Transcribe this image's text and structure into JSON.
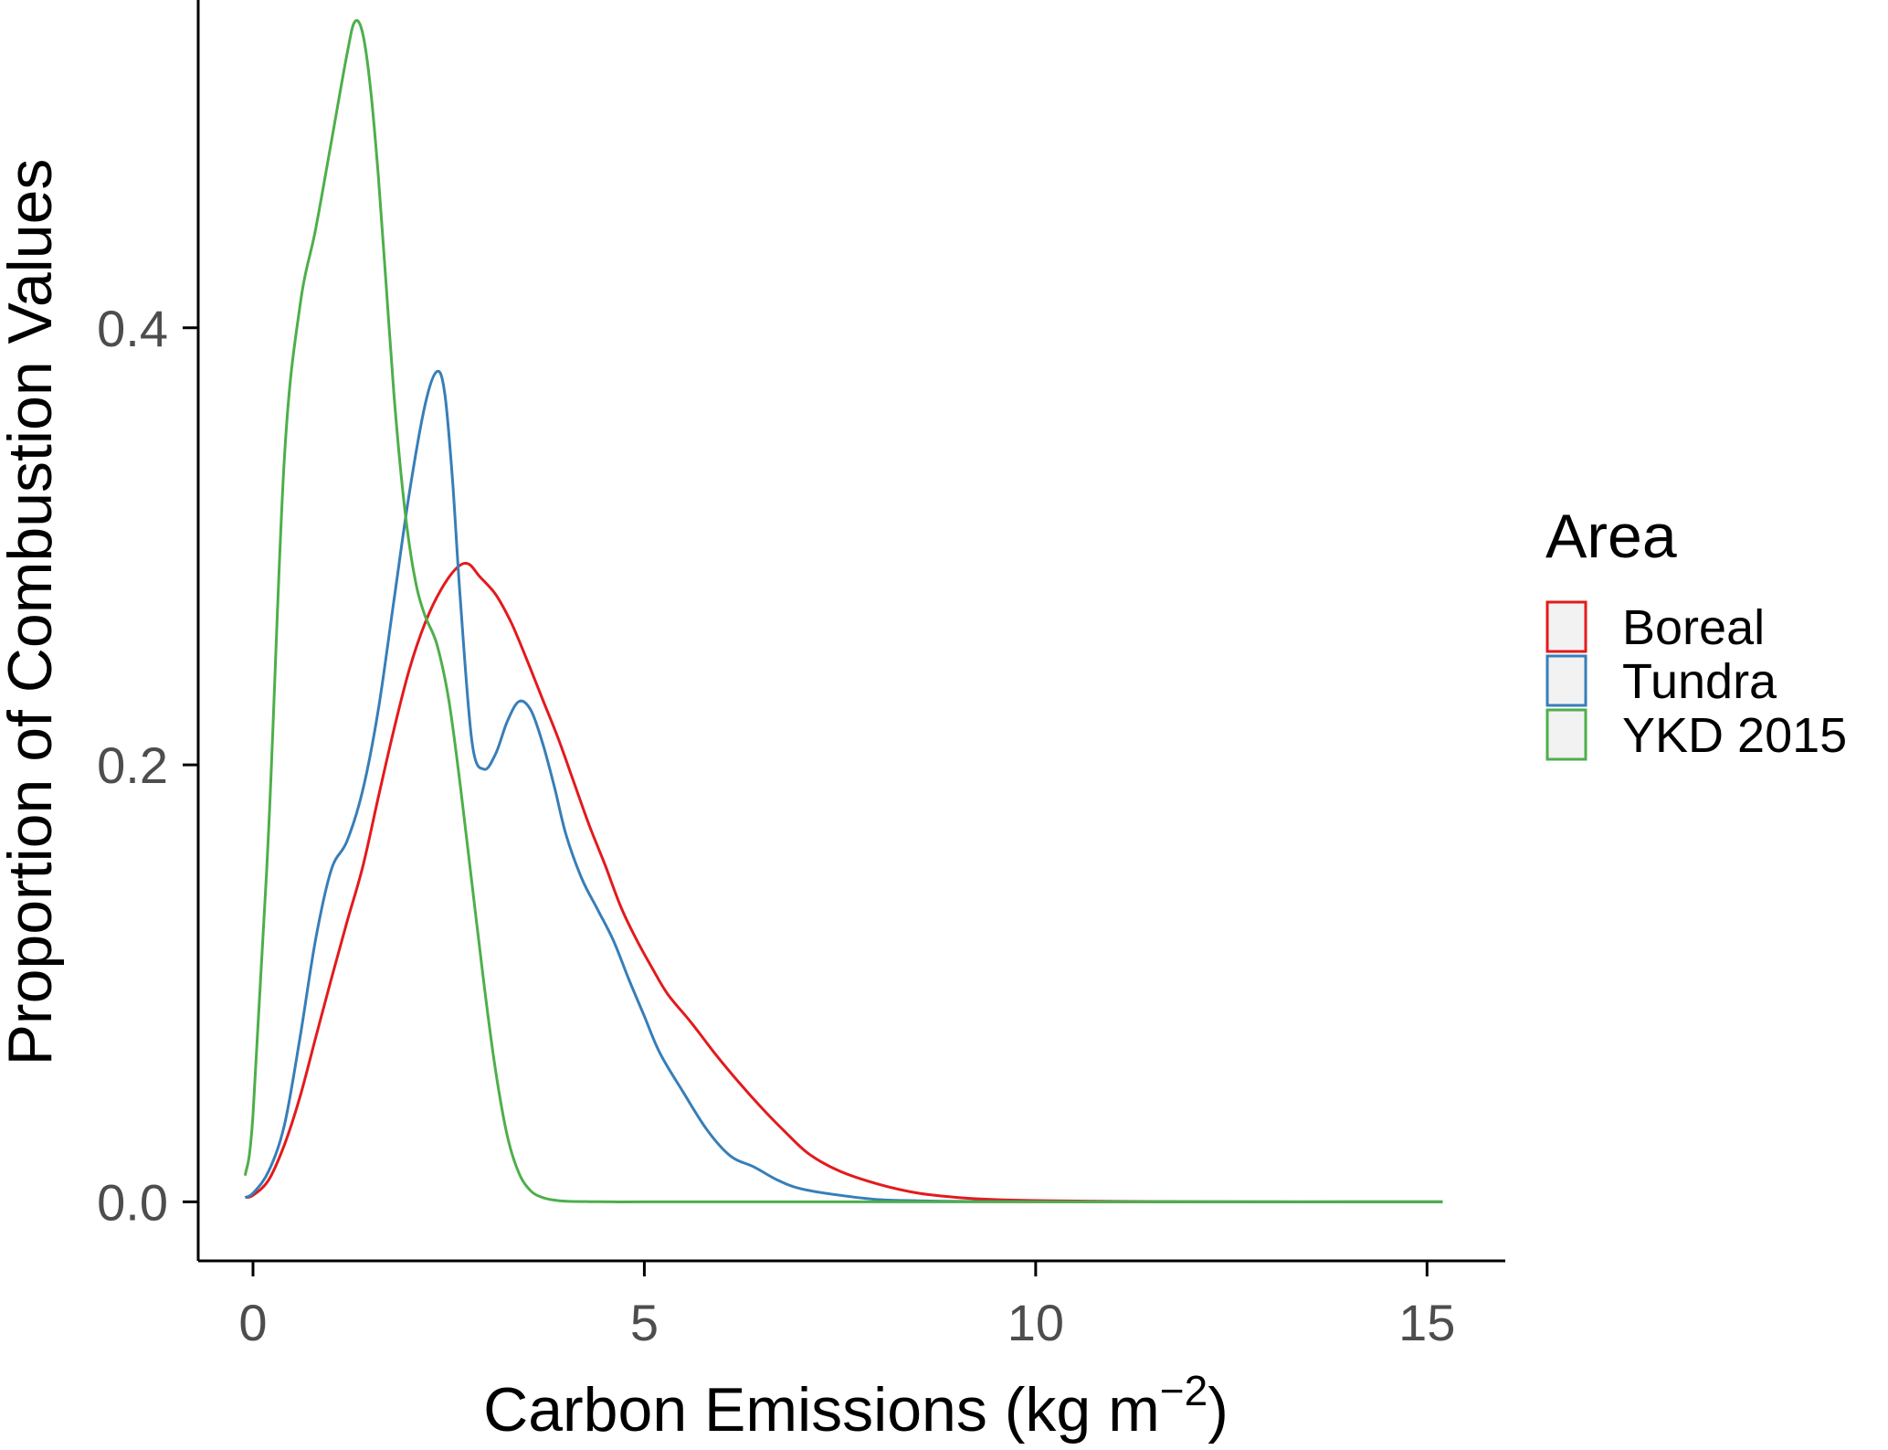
{
  "chart_data": {
    "type": "line",
    "xlabel": "Carbon Emissions (kg m",
    "xlabel_superscript": "−2",
    "xlabel_suffix": ")",
    "ylabel": "Proportion of Combustion Values",
    "xlim": [
      -0.7,
      16.0
    ],
    "ylim": [
      -0.027,
      0.55
    ],
    "x_ticks": [
      0,
      5,
      10,
      15
    ],
    "y_ticks": [
      0.0,
      0.2,
      0.4
    ],
    "x_tick_labels": [
      "0",
      "5",
      "10",
      "15"
    ],
    "y_tick_labels": [
      "0.0",
      "0.2",
      "0.4"
    ],
    "grid": false,
    "legend": {
      "title": "Area",
      "placement": "right",
      "entries": [
        "Boreal",
        "Tundra",
        "YKD 2015"
      ]
    },
    "colors": {
      "Boreal": "#e31a1c",
      "Tundra": "#377eb8",
      "YKD 2015": "#4daf4a"
    },
    "series": [
      {
        "name": "Boreal",
        "x": [
          -0.1,
          0.0,
          0.2,
          0.4,
          0.6,
          0.8,
          1.0,
          1.2,
          1.4,
          1.6,
          1.8,
          2.0,
          2.2,
          2.4,
          2.6,
          2.75,
          2.9,
          3.1,
          3.3,
          3.5,
          3.7,
          3.9,
          4.1,
          4.3,
          4.5,
          4.7,
          4.9,
          5.1,
          5.3,
          5.6,
          5.9,
          6.2,
          6.5,
          6.8,
          7.1,
          7.5,
          8.0,
          8.5,
          9.0,
          9.5,
          10.0,
          11.0,
          12.0,
          13.0,
          14.0,
          15.2
        ],
        "y": [
          0.002,
          0.003,
          0.01,
          0.026,
          0.048,
          0.075,
          0.102,
          0.128,
          0.153,
          0.185,
          0.216,
          0.244,
          0.265,
          0.28,
          0.29,
          0.292,
          0.286,
          0.278,
          0.265,
          0.248,
          0.23,
          0.212,
          0.192,
          0.172,
          0.154,
          0.135,
          0.12,
          0.107,
          0.095,
          0.082,
          0.068,
          0.055,
          0.043,
          0.032,
          0.022,
          0.014,
          0.008,
          0.004,
          0.002,
          0.001,
          0.0006,
          0.0002,
          0.0001,
          0.0,
          0.0,
          0.0
        ]
      },
      {
        "name": "Tundra",
        "x": [
          -0.1,
          0.0,
          0.2,
          0.4,
          0.6,
          0.8,
          1.0,
          1.2,
          1.4,
          1.6,
          1.8,
          2.0,
          2.2,
          2.35,
          2.45,
          2.55,
          2.65,
          2.8,
          2.95,
          3.1,
          3.25,
          3.4,
          3.55,
          3.7,
          3.85,
          4.0,
          4.2,
          4.4,
          4.6,
          4.8,
          5.0,
          5.2,
          5.5,
          5.8,
          6.1,
          6.4,
          6.7,
          7.0,
          7.5,
          8.0,
          8.5,
          9.0,
          10.0,
          11.0,
          13.0,
          15.2
        ],
        "y": [
          0.002,
          0.004,
          0.014,
          0.035,
          0.075,
          0.12,
          0.152,
          0.165,
          0.188,
          0.225,
          0.275,
          0.325,
          0.365,
          0.38,
          0.37,
          0.33,
          0.275,
          0.21,
          0.198,
          0.205,
          0.22,
          0.229,
          0.225,
          0.21,
          0.19,
          0.168,
          0.148,
          0.134,
          0.12,
          0.102,
          0.085,
          0.068,
          0.05,
          0.033,
          0.021,
          0.016,
          0.01,
          0.006,
          0.003,
          0.001,
          0.0005,
          0.0002,
          0.0001,
          0.0,
          0.0,
          0.0
        ]
      },
      {
        "name": "YKD 2015",
        "x": [
          -0.1,
          0.0,
          0.2,
          0.4,
          0.6,
          0.8,
          1.0,
          1.2,
          1.3,
          1.4,
          1.5,
          1.6,
          1.7,
          1.8,
          1.9,
          2.0,
          2.1,
          2.2,
          2.35,
          2.5,
          2.65,
          2.8,
          2.95,
          3.1,
          3.25,
          3.4,
          3.55,
          3.7,
          3.85,
          4.0,
          4.3,
          4.6,
          5.0,
          6.0,
          8.0,
          10.0,
          12.0,
          15.2
        ],
        "y": [
          0.012,
          0.04,
          0.17,
          0.34,
          0.41,
          0.445,
          0.485,
          0.525,
          0.54,
          0.535,
          0.51,
          0.47,
          0.42,
          0.37,
          0.33,
          0.3,
          0.28,
          0.268,
          0.255,
          0.23,
          0.19,
          0.145,
          0.1,
          0.06,
          0.03,
          0.013,
          0.005,
          0.002,
          0.0008,
          0.0003,
          0.0001,
          0.0,
          0.0,
          0.0,
          0.0,
          0.0,
          0.0,
          0.0
        ]
      }
    ]
  }
}
